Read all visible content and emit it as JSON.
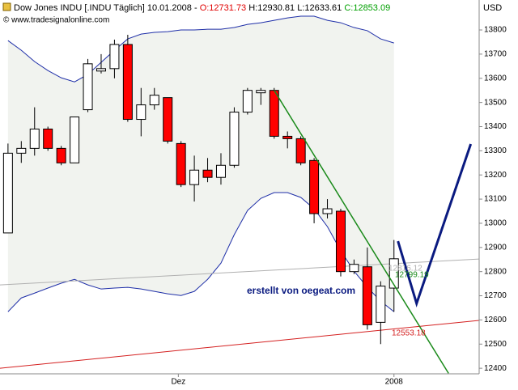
{
  "chart_data": {
    "type": "candlestick",
    "title": "Dow Jones INDU [.INDU Täglich] 10.01.2008 -",
    "title_open": "O:12731.73",
    "title_high": "H:12930.81",
    "title_low": "L:12633.61",
    "title_close": "C:12853.09",
    "subtitle": "© www.tradesignalonline.com",
    "y_axis_label": "USD",
    "annotation": "erstellt von oegeat.com",
    "ylim": [
      12377,
      13924
    ],
    "yticks": [
      12400,
      12500,
      12600,
      12700,
      12800,
      12900,
      13000,
      13100,
      13200,
      13300,
      13400,
      13500,
      13600,
      13700,
      13800
    ],
    "xlim": [
      -0.6,
      35.4
    ],
    "xticks": [
      {
        "value": 12.8,
        "label": "Dez"
      },
      {
        "value": 29,
        "label": "2008"
      }
    ],
    "up_color": "#ffffff",
    "down_color": "#ff0000",
    "open": [
      12960,
      13290,
      13310,
      13390,
      13310,
      13250,
      13470,
      13630,
      13640,
      13740,
      13430,
      13490,
      13520,
      13330,
      13160,
      13220,
      13190,
      13240,
      13460,
      13540,
      13550,
      13360,
      13350,
      13260,
      13040,
      13050,
      12800,
      12820,
      12590,
      12731.73
    ],
    "high": [
      13330,
      13340,
      13480,
      13400,
      13320,
      13440,
      13680,
      13700,
      13760,
      13780,
      13560,
      13560,
      13520,
      13340,
      13280,
      13270,
      13290,
      13480,
      13560,
      13560,
      13560,
      13380,
      13360,
      13270,
      13100,
      13060,
      12850,
      12900,
      12760,
      12930.81
    ],
    "low": [
      12960,
      13250,
      13280,
      13300,
      13240,
      13250,
      13460,
      13620,
      13600,
      13420,
      13360,
      13470,
      13330,
      13150,
      13090,
      13170,
      13160,
      13230,
      13450,
      13490,
      13350,
      13310,
      13240,
      13000,
      13020,
      12780,
      12790,
      12560,
      12500,
      12633.61
    ],
    "close": [
      13290,
      13310,
      13390,
      13310,
      13250,
      13440,
      13660,
      13640,
      13740,
      13430,
      13490,
      13530,
      13340,
      13160,
      13220,
      13190,
      13240,
      13460,
      13550,
      13550,
      13360,
      13350,
      13250,
      13040,
      13060,
      12800,
      12830,
      12580,
      12740,
      12853.09
    ],
    "bands": {
      "color": "#1f2fa8",
      "fill": "#f1f3ef",
      "upper": [
        13756,
        13716,
        13669,
        13632,
        13602,
        13585,
        13616,
        13666,
        13716,
        13763,
        13783,
        13790,
        13793,
        13800,
        13800,
        13803,
        13803,
        13810,
        13823,
        13830,
        13840,
        13850,
        13857,
        13857,
        13840,
        13830,
        13810,
        13797,
        13763,
        13746
      ],
      "lower": [
        12634,
        12691,
        12711,
        12732,
        12752,
        12768,
        12745,
        12728,
        12732,
        12735,
        12728,
        12718,
        12708,
        12701,
        12718,
        12768,
        12835,
        12953,
        13053,
        13103,
        13127,
        13127,
        13107,
        13060,
        12986,
        12886,
        12802,
        12735,
        12678,
        12634
      ]
    },
    "trendlines": [
      {
        "color": "#b0b0b0",
        "x": [
          -0.6,
          35.4
        ],
        "y": [
          12745,
          12852
        ],
        "label": "12816.12"
      },
      {
        "color": "#d42020",
        "x": [
          -0.6,
          35.4
        ],
        "y": [
          12400,
          12598
        ],
        "label": "12553.18"
      },
      {
        "color": "#1a8a1a",
        "x": [
          20,
          33.1
        ],
        "y": [
          13550,
          12379
        ],
        "label": "12799.19"
      },
      {
        "color": "#0a1a80",
        "x": [
          29.3,
          30.7,
          34.77
        ],
        "y": [
          12926,
          12668,
          13328
        ]
      }
    ]
  }
}
